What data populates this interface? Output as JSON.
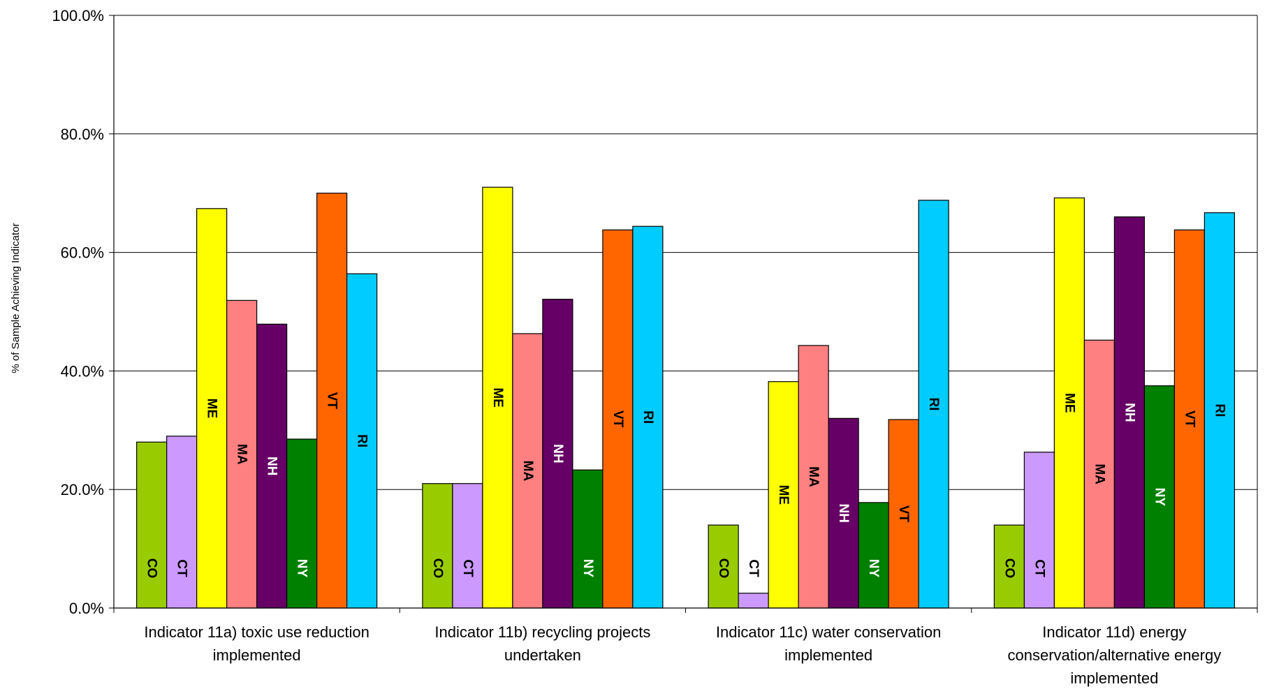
{
  "chart_data": {
    "type": "bar",
    "ylabel": "% of Sample Achieving Indicator",
    "ylim": [
      0,
      100
    ],
    "yticks": [
      "0.0%",
      "20.0%",
      "40.0%",
      "60.0%",
      "80.0%",
      "100.0%"
    ],
    "grid": true,
    "legend": "none (series labels printed on bars)",
    "categories": [
      [
        "Indicator 11a) toxic use reduction",
        "implemented"
      ],
      [
        "Indicator 11b) recycling projects",
        "undertaken"
      ],
      [
        "Indicator 11c) water conservation",
        "implemented"
      ],
      [
        "Indicator 11d) energy",
        "conservation/alternative energy",
        "implemented"
      ]
    ],
    "series": [
      {
        "name": "CO",
        "color": "#99cc00",
        "label_color": "#000000",
        "values": [
          28.0,
          21.0,
          14.0,
          14.0
        ]
      },
      {
        "name": "CT",
        "color": "#cc99ff",
        "label_color": "#000000",
        "values": [
          29.0,
          21.0,
          2.5,
          26.3
        ]
      },
      {
        "name": "ME",
        "color": "#ffff00",
        "label_color": "#000000",
        "values": [
          67.4,
          71.0,
          38.2,
          69.2
        ]
      },
      {
        "name": "MA",
        "color": "#ff8080",
        "label_color": "#000000",
        "values": [
          51.9,
          46.3,
          44.3,
          45.2
        ]
      },
      {
        "name": "NH",
        "color": "#660066",
        "label_color": "#ffffff",
        "values": [
          47.9,
          52.1,
          32.0,
          66.0
        ]
      },
      {
        "name": "NY",
        "color": "#008000",
        "label_color": "#ffffff",
        "values": [
          28.5,
          23.3,
          17.8,
          37.5
        ]
      },
      {
        "name": "VT",
        "color": "#ff6600",
        "label_color": "#000000",
        "values": [
          70.0,
          63.8,
          31.8,
          63.8
        ]
      },
      {
        "name": "RI",
        "color": "#00ccff",
        "label_color": "#000000",
        "values": [
          56.4,
          64.4,
          68.8,
          66.7
        ]
      }
    ]
  }
}
